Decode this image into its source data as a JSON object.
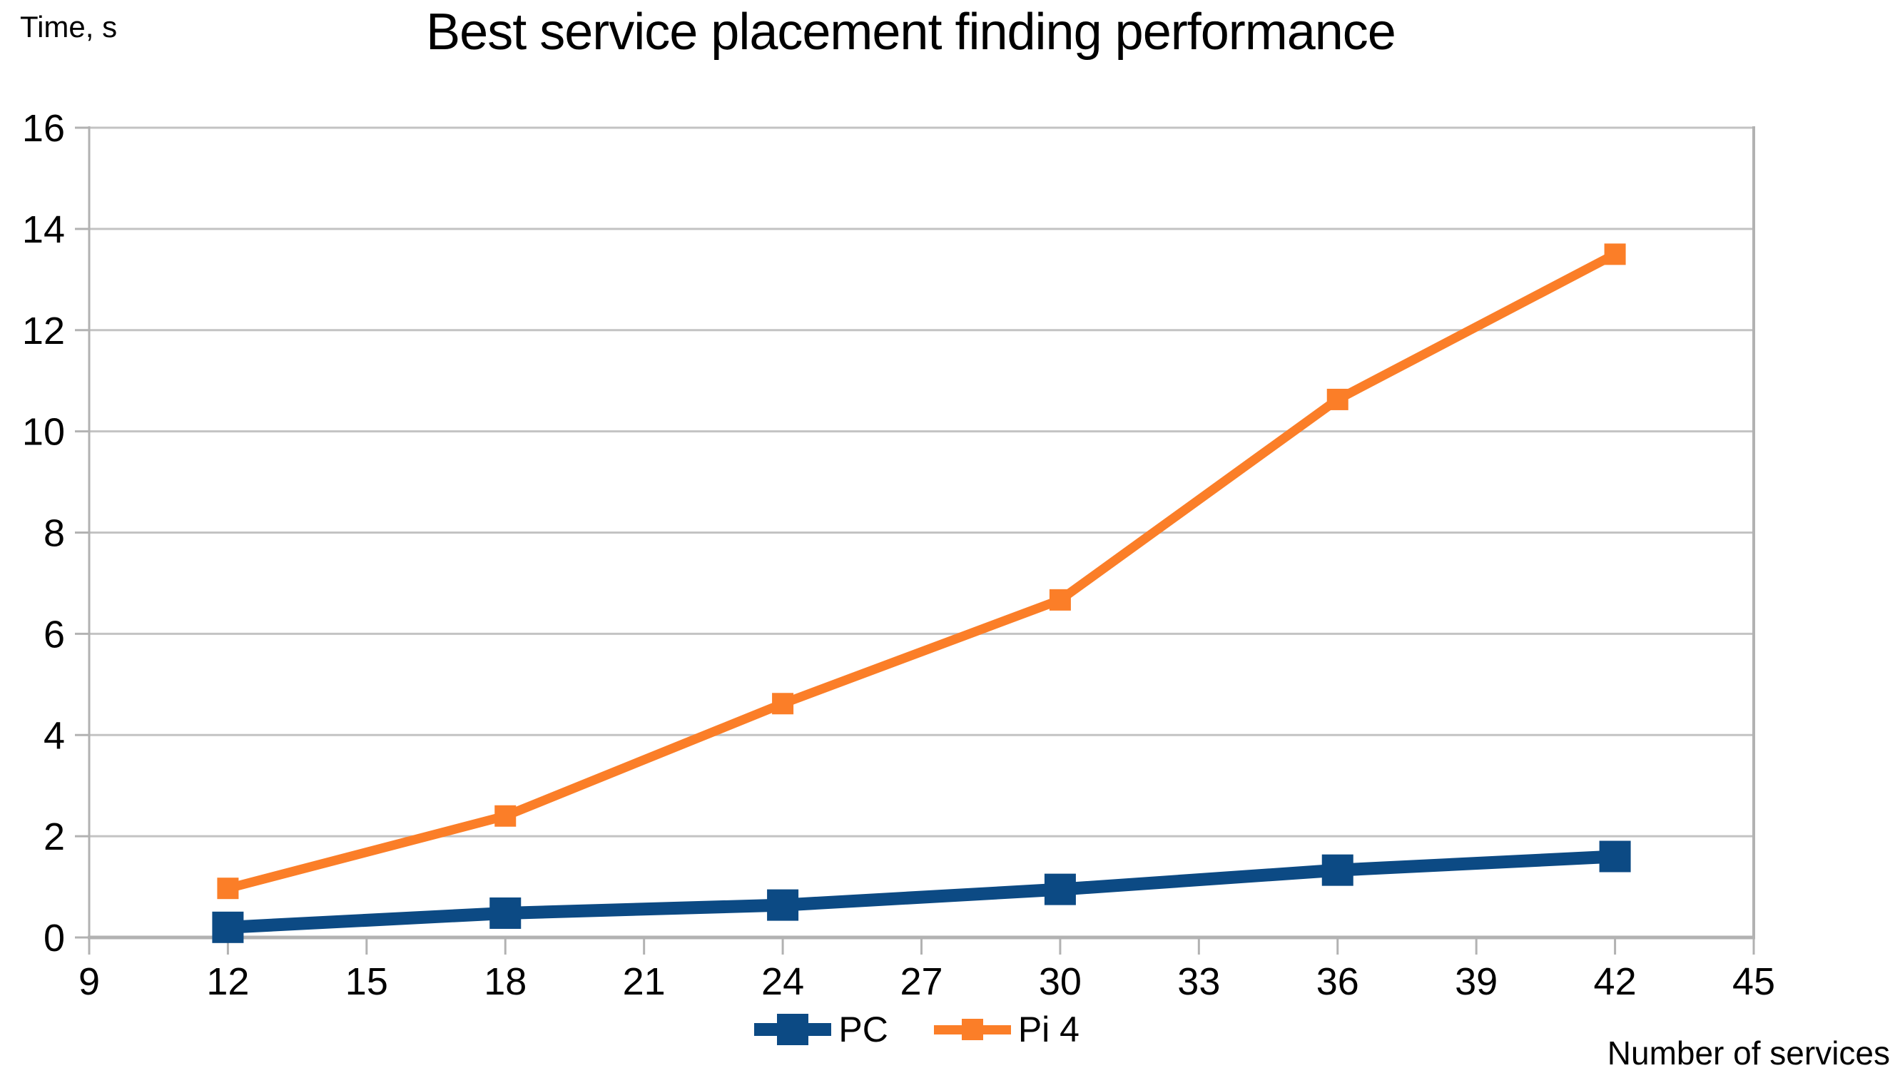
{
  "chart_data": {
    "type": "line",
    "title": "Best service placement finding performance",
    "ylabel": "Time, s",
    "xlabel": "Number of services",
    "x": [
      12,
      18,
      24,
      30,
      36,
      42
    ],
    "series": [
      {
        "name": "PC",
        "color": "#0c4a84",
        "values": [
          0.2,
          0.48,
          0.64,
          0.95,
          1.33,
          1.6
        ]
      },
      {
        "name": "Pi 4",
        "color": "#fb7e28",
        "values": [
          0.97,
          2.4,
          4.62,
          6.67,
          10.63,
          13.5
        ]
      }
    ],
    "xlim": [
      9,
      45
    ],
    "x_ticks": [
      9,
      12,
      15,
      18,
      21,
      24,
      27,
      30,
      33,
      36,
      39,
      42,
      45
    ],
    "ylim": [
      0,
      16
    ],
    "y_ticks": [
      0,
      2,
      4,
      6,
      8,
      10,
      12,
      14,
      16
    ],
    "grid": true,
    "legend_position": "bottom-center",
    "marker": "square",
    "colors": {
      "gridline": "#c3c3c3",
      "axis": "#b2b2b2",
      "text": "#000000",
      "background": "#ffffff"
    }
  }
}
